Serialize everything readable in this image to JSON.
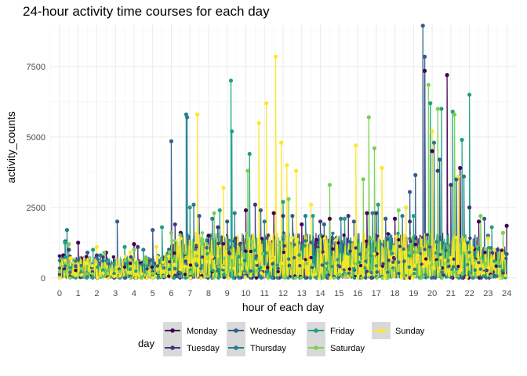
{
  "chart_data": {
    "type": "line",
    "title": "24-hour activity time courses for each day",
    "xlabel": "hour of each day",
    "ylabel": "activity_counts",
    "xlim": [
      -0.5,
      24.5
    ],
    "ylim": [
      -200,
      9000
    ],
    "x_ticks": [
      "0",
      "1",
      "2",
      "3",
      "4",
      "5",
      "6",
      "7",
      "8",
      "9",
      "10",
      "11",
      "12",
      "13",
      "14",
      "15",
      "16",
      "17",
      "18",
      "19",
      "20",
      "21",
      "22",
      "23",
      "24"
    ],
    "y_ticks": [
      "0",
      "2500",
      "5000",
      "7500"
    ],
    "y_tick_values": [
      0,
      2500,
      5000,
      7500
    ],
    "grid": true,
    "legend_position": "bottom",
    "legend_title": "day",
    "series": [
      {
        "name": "Monday",
        "color": "#440154",
        "peaks": [
          [
            0.2,
            800
          ],
          [
            1,
            1250
          ],
          [
            2.5,
            900
          ],
          [
            4,
            1200
          ],
          [
            6.5,
            1600
          ],
          [
            8,
            1500
          ],
          [
            10,
            2400
          ],
          [
            11.5,
            2300
          ],
          [
            13,
            1900
          ],
          [
            14.5,
            2100
          ],
          [
            16.5,
            2300
          ],
          [
            18,
            2100
          ],
          [
            19.6,
            7350
          ],
          [
            20,
            4500
          ],
          [
            20.8,
            7200
          ],
          [
            21.5,
            3900
          ],
          [
            22.5,
            2000
          ],
          [
            24,
            1850
          ]
        ]
      },
      {
        "name": "Tuesday",
        "color": "#46337e",
        "peaks": [
          [
            0.5,
            1000
          ],
          [
            2,
            800
          ],
          [
            4.2,
            1100
          ],
          [
            6.2,
            1900
          ],
          [
            8.5,
            1800
          ],
          [
            10.5,
            2600
          ],
          [
            12,
            2200
          ],
          [
            14,
            2000
          ],
          [
            15.5,
            2200
          ],
          [
            17,
            2300
          ],
          [
            18.8,
            2000
          ],
          [
            20.3,
            3800
          ],
          [
            21,
            3300
          ],
          [
            22,
            2500
          ],
          [
            23.5,
            1000
          ]
        ]
      },
      {
        "name": "Wednesday",
        "color": "#365c8d",
        "peaks": [
          [
            0.3,
            1300
          ],
          [
            1.5,
            900
          ],
          [
            3.1,
            2000
          ],
          [
            5,
            1700
          ],
          [
            6,
            4850
          ],
          [
            7.5,
            2200
          ],
          [
            9,
            2000
          ],
          [
            10.8,
            2400
          ],
          [
            12.5,
            2200
          ],
          [
            14.2,
            1900
          ],
          [
            15.8,
            2000
          ],
          [
            17.5,
            2100
          ],
          [
            18.8,
            3050
          ],
          [
            19.1,
            3650
          ],
          [
            19.5,
            8950
          ],
          [
            19.6,
            7850
          ],
          [
            20.4,
            4200
          ],
          [
            21.3,
            3500
          ],
          [
            22.8,
            2100
          ],
          [
            24,
            850
          ]
        ]
      },
      {
        "name": "Thursday",
        "color": "#277f8e",
        "peaks": [
          [
            0.4,
            1700
          ],
          [
            2.2,
            800
          ],
          [
            4.5,
            1000
          ],
          [
            6.8,
            5800
          ],
          [
            6.85,
            5700
          ],
          [
            7.2,
            2600
          ],
          [
            8.2,
            2100
          ],
          [
            9.4,
            2300
          ],
          [
            11,
            2000
          ],
          [
            13.2,
            2200
          ],
          [
            15.1,
            2100
          ],
          [
            16.8,
            2300
          ],
          [
            18.4,
            2200
          ],
          [
            20.1,
            4800
          ],
          [
            21.7,
            3600
          ],
          [
            23,
            1500
          ]
        ]
      },
      {
        "name": "Friday",
        "color": "#1fa187",
        "peaks": [
          [
            0.3,
            1250
          ],
          [
            1.8,
            1000
          ],
          [
            3.5,
            1100
          ],
          [
            5.5,
            1800
          ],
          [
            7,
            2500
          ],
          [
            8.6,
            2400
          ],
          [
            9.2,
            7000
          ],
          [
            9.25,
            5200
          ],
          [
            10.2,
            4400
          ],
          [
            12,
            2700
          ],
          [
            13.6,
            2200
          ],
          [
            15.3,
            2100
          ],
          [
            17.1,
            2600
          ],
          [
            19,
            2200
          ],
          [
            19.9,
            6200
          ],
          [
            20.5,
            6000
          ],
          [
            21.1,
            5900
          ],
          [
            21.6,
            4900
          ],
          [
            22,
            6500
          ],
          [
            23.2,
            1800
          ]
        ]
      },
      {
        "name": "Saturday",
        "color": "#7ad151",
        "peaks": [
          [
            0.5,
            1200
          ],
          [
            2.4,
            900
          ],
          [
            4,
            1000
          ],
          [
            6,
            1600
          ],
          [
            8.3,
            2300
          ],
          [
            10.1,
            3800
          ],
          [
            12.3,
            2800
          ],
          [
            14.5,
            3300
          ],
          [
            16.3,
            3500
          ],
          [
            16.6,
            5700
          ],
          [
            16.9,
            4600
          ],
          [
            18.2,
            2400
          ],
          [
            19.8,
            6850
          ],
          [
            20.3,
            6000
          ],
          [
            21.2,
            5800
          ],
          [
            22.6,
            2200
          ],
          [
            23.8,
            1600
          ]
        ]
      },
      {
        "name": "Sunday",
        "color": "#fde725",
        "peaks": [
          [
            0.6,
            700
          ],
          [
            2,
            1100
          ],
          [
            3.8,
            900
          ],
          [
            5.2,
            1100
          ],
          [
            6.5,
            1400
          ],
          [
            7.4,
            5800
          ],
          [
            8.8,
            3200
          ],
          [
            10.7,
            5500
          ],
          [
            11.1,
            6200
          ],
          [
            11.6,
            7850
          ],
          [
            11.9,
            4800
          ],
          [
            12.2,
            4000
          ],
          [
            12.7,
            3800
          ],
          [
            13.5,
            2600
          ],
          [
            15.9,
            4700
          ],
          [
            17.3,
            3900
          ],
          [
            18.6,
            2500
          ],
          [
            20,
            5200
          ],
          [
            21.4,
            3600
          ],
          [
            23,
            1400
          ]
        ]
      }
    ]
  }
}
